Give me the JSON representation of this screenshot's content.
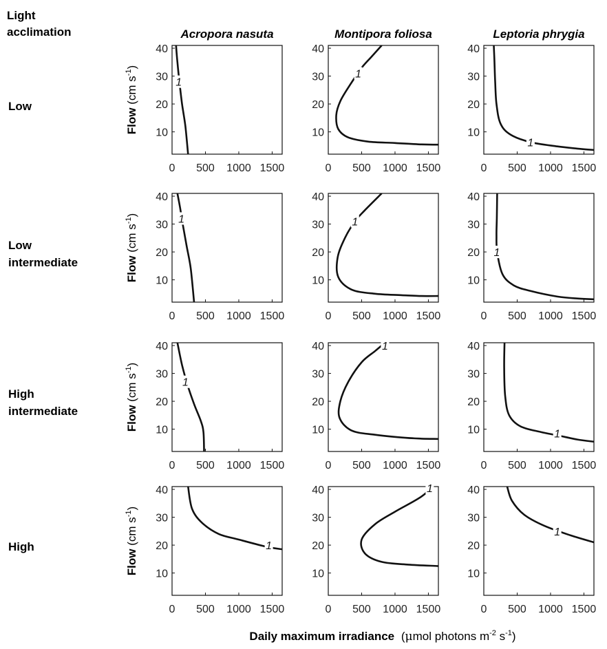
{
  "row_header": "Light\nacclimation",
  "ylabel_bold": "Flow",
  "ylabel_unit": "(cm s",
  "ylabel_sup": "-1",
  "ylabel_close": ")",
  "xlabel_bold": "Daily maximum irradiance",
  "xlabel_unit_a": "(",
  "xlabel_mu": "μ",
  "xlabel_unit_b": "mol photons m",
  "xlabel_sup1": "-2",
  "xlabel_unit_c": " s",
  "xlabel_sup2": "-1",
  "xlabel_unit_d": ")",
  "colors": {
    "curve": "#111111",
    "frame": "#111111",
    "background": "#ffffff"
  },
  "chart_data": {
    "type": "line",
    "description_kind": "contour line (level 1) grid",
    "species": [
      "Acropora nasuta",
      "Montipora foliosa",
      "Leptoria phrygia"
    ],
    "acclimation_levels": [
      "Low",
      "Low intermediate",
      "High intermediate",
      "High"
    ],
    "xlim": [
      0,
      1650
    ],
    "ylim": [
      2,
      41
    ],
    "xticks": [
      0,
      500,
      1000,
      1500
    ],
    "yticks": [
      10,
      20,
      30,
      40
    ],
    "contour_level_label": "1",
    "panels": [
      {
        "row": 0,
        "col": 0,
        "points": [
          [
            60,
            41
          ],
          [
            80,
            35
          ],
          [
            110,
            28
          ],
          [
            150,
            20
          ],
          [
            200,
            12
          ],
          [
            240,
            2
          ]
        ],
        "label_at": [
          100,
          28
        ]
      },
      {
        "row": 0,
        "col": 1,
        "points": [
          [
            800,
            41
          ],
          [
            650,
            37
          ],
          [
            500,
            33
          ],
          [
            330,
            27
          ],
          [
            180,
            21
          ],
          [
            120,
            16
          ],
          [
            150,
            11
          ],
          [
            300,
            8
          ],
          [
            600,
            6.5
          ],
          [
            1000,
            6
          ],
          [
            1400,
            5.5
          ],
          [
            1650,
            5.4
          ]
        ],
        "label_at": [
          450,
          31
        ]
      },
      {
        "row": 0,
        "col": 2,
        "points": [
          [
            150,
            41
          ],
          [
            160,
            35
          ],
          [
            170,
            28
          ],
          [
            190,
            20
          ],
          [
            250,
            13
          ],
          [
            400,
            9
          ],
          [
            700,
            6.3
          ],
          [
            1100,
            4.8
          ],
          [
            1400,
            4
          ],
          [
            1650,
            3.5
          ]
        ],
        "label_at": [
          700,
          6.3
        ]
      },
      {
        "row": 1,
        "col": 0,
        "points": [
          [
            80,
            41
          ],
          [
            120,
            36
          ],
          [
            160,
            30
          ],
          [
            220,
            22
          ],
          [
            280,
            14
          ],
          [
            330,
            2
          ]
        ],
        "label_at": [
          140,
          32
        ]
      },
      {
        "row": 1,
        "col": 1,
        "points": [
          [
            800,
            41
          ],
          [
            550,
            35
          ],
          [
            400,
            31
          ],
          [
            250,
            25
          ],
          [
            140,
            18
          ],
          [
            150,
            11
          ],
          [
            350,
            6.5
          ],
          [
            700,
            5
          ],
          [
            1100,
            4.5
          ],
          [
            1400,
            4.2
          ],
          [
            1650,
            4.2
          ]
        ],
        "label_at": [
          400,
          31
        ]
      },
      {
        "row": 1,
        "col": 2,
        "points": [
          [
            200,
            41
          ],
          [
            195,
            32
          ],
          [
            190,
            26
          ],
          [
            200,
            20
          ],
          [
            280,
            12
          ],
          [
            450,
            8
          ],
          [
            700,
            6
          ],
          [
            1100,
            4
          ],
          [
            1400,
            3.3
          ],
          [
            1650,
            3
          ]
        ],
        "label_at": [
          195,
          20
        ]
      },
      {
        "row": 2,
        "col": 0,
        "points": [
          [
            80,
            41
          ],
          [
            150,
            33
          ],
          [
            230,
            26
          ],
          [
            330,
            19
          ],
          [
            430,
            13
          ],
          [
            470,
            9
          ],
          [
            480,
            2
          ]
        ],
        "label_at": [
          200,
          27
        ]
      },
      {
        "row": 2,
        "col": 1,
        "points": [
          [
            850,
            41
          ],
          [
            700,
            38
          ],
          [
            500,
            34
          ],
          [
            300,
            27
          ],
          [
            180,
            20
          ],
          [
            170,
            14
          ],
          [
            350,
            9.5
          ],
          [
            700,
            8
          ],
          [
            1100,
            7
          ],
          [
            1400,
            6.6
          ],
          [
            1650,
            6.5
          ]
        ],
        "label_at": [
          850,
          40
        ]
      },
      {
        "row": 2,
        "col": 2,
        "points": [
          [
            310,
            41
          ],
          [
            305,
            32
          ],
          [
            320,
            22
          ],
          [
            380,
            15
          ],
          [
            550,
            11
          ],
          [
            850,
            9
          ],
          [
            1100,
            7.8
          ],
          [
            1400,
            6.3
          ],
          [
            1650,
            5.5
          ]
        ],
        "label_at": [
          1100,
          8.5
        ]
      },
      {
        "row": 3,
        "col": 0,
        "points": [
          [
            240,
            41
          ],
          [
            300,
            33
          ],
          [
            450,
            28
          ],
          [
            700,
            24
          ],
          [
            1000,
            22
          ],
          [
            1400,
            19.5
          ],
          [
            1650,
            18.5
          ]
        ],
        "label_at": [
          1450,
          20
        ]
      },
      {
        "row": 3,
        "col": 1,
        "points": [
          [
            1650,
            43
          ],
          [
            1400,
            37.5
          ],
          [
            1000,
            32
          ],
          [
            700,
            27.5
          ],
          [
            500,
            22
          ],
          [
            550,
            17
          ],
          [
            800,
            14
          ],
          [
            1200,
            13
          ],
          [
            1650,
            12.5
          ]
        ],
        "label_at": [
          1520,
          40.5
        ]
      },
      {
        "row": 3,
        "col": 2,
        "points": [
          [
            350,
            41
          ],
          [
            420,
            36
          ],
          [
            600,
            31
          ],
          [
            900,
            27
          ],
          [
            1300,
            23.5
          ],
          [
            1650,
            21
          ]
        ],
        "label_at": [
          1100,
          25
        ]
      }
    ]
  }
}
